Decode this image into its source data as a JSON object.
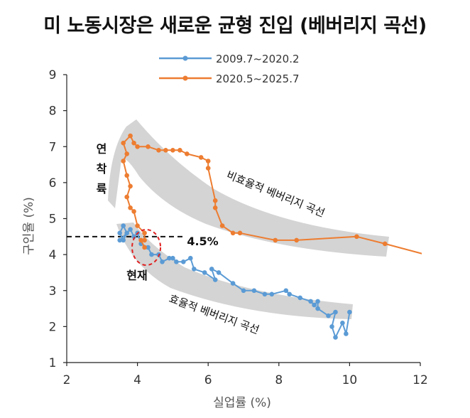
{
  "title": "미 노동시장은 새로운 균형 진입 (베버리지 곡선)",
  "chart_data": {
    "type": "line",
    "xlabel": "실업률 (%)",
    "ylabel": "구인율 (%)",
    "xlim": [
      2,
      12
    ],
    "ylim": [
      1,
      9
    ],
    "xticks": [
      "2",
      "4",
      "6",
      "8",
      "10",
      "12"
    ],
    "yticks": [
      "1",
      "2",
      "3",
      "4",
      "5",
      "6",
      "7",
      "8",
      "9"
    ],
    "legend_position": "top-center",
    "series": [
      {
        "name": "2009.7~2020.2",
        "color": "#5b9bd5",
        "points": [
          [
            10.0,
            2.4
          ],
          [
            9.9,
            1.8
          ],
          [
            9.8,
            2.1
          ],
          [
            9.6,
            1.7
          ],
          [
            9.5,
            2.0
          ],
          [
            9.6,
            2.4
          ],
          [
            9.4,
            2.3
          ],
          [
            9.1,
            2.5
          ],
          [
            9.1,
            2.7
          ],
          [
            9.0,
            2.6
          ],
          [
            8.9,
            2.7
          ],
          [
            8.6,
            2.8
          ],
          [
            8.3,
            2.9
          ],
          [
            8.2,
            3.0
          ],
          [
            7.8,
            2.9
          ],
          [
            7.6,
            2.9
          ],
          [
            7.3,
            3.0
          ],
          [
            7.0,
            3.0
          ],
          [
            6.7,
            3.2
          ],
          [
            6.3,
            3.5
          ],
          [
            6.1,
            3.6
          ],
          [
            6.2,
            3.3
          ],
          [
            5.9,
            3.5
          ],
          [
            5.6,
            3.6
          ],
          [
            5.5,
            3.9
          ],
          [
            5.3,
            3.8
          ],
          [
            5.1,
            3.8
          ],
          [
            5.0,
            3.9
          ],
          [
            4.9,
            3.9
          ],
          [
            4.7,
            3.8
          ],
          [
            4.6,
            4.0
          ],
          [
            4.4,
            4.0
          ],
          [
            4.3,
            4.2
          ],
          [
            4.1,
            4.3
          ],
          [
            4.0,
            4.6
          ],
          [
            3.9,
            4.5
          ],
          [
            3.8,
            4.7
          ],
          [
            3.7,
            4.6
          ],
          [
            3.6,
            4.4
          ],
          [
            3.5,
            4.6
          ],
          [
            3.6,
            4.8
          ],
          [
            3.7,
            4.6
          ],
          [
            3.5,
            4.4
          ]
        ]
      },
      {
        "name": "2020.5~2025.7",
        "color": "#ed7d31",
        "points": [
          [
            13.3,
            3.7
          ],
          [
            11.0,
            4.3
          ],
          [
            10.2,
            4.5
          ],
          [
            8.5,
            4.4
          ],
          [
            7.9,
            4.4
          ],
          [
            6.9,
            4.6
          ],
          [
            6.7,
            4.6
          ],
          [
            6.4,
            4.8
          ],
          [
            6.2,
            5.3
          ],
          [
            6.2,
            5.5
          ],
          [
            6.0,
            6.4
          ],
          [
            6.0,
            6.6
          ],
          [
            5.8,
            6.7
          ],
          [
            5.4,
            6.8
          ],
          [
            5.2,
            6.9
          ],
          [
            5.0,
            6.9
          ],
          [
            4.8,
            6.9
          ],
          [
            4.6,
            6.9
          ],
          [
            4.3,
            7.0
          ],
          [
            4.0,
            7.0
          ],
          [
            3.9,
            7.1
          ],
          [
            3.8,
            7.3
          ],
          [
            3.6,
            7.1
          ],
          [
            3.7,
            6.8
          ],
          [
            3.6,
            6.6
          ],
          [
            3.7,
            6.2
          ],
          [
            3.8,
            5.9
          ],
          [
            3.7,
            5.6
          ],
          [
            3.8,
            5.3
          ],
          [
            3.9,
            5.2
          ],
          [
            4.0,
            4.8
          ],
          [
            4.2,
            4.6
          ],
          [
            4.2,
            4.4
          ],
          [
            4.1,
            4.4
          ],
          [
            4.2,
            4.2
          ]
        ]
      }
    ],
    "reference_line": {
      "y": 4.5,
      "label": "4.5%"
    },
    "annotations": {
      "current": "현재",
      "efficient_curve": "효율적 베버리지 곡선",
      "inefficient_curve": "비효율적 베버리지 곡선",
      "soft_landing": [
        "연",
        "착",
        "륙"
      ]
    }
  }
}
